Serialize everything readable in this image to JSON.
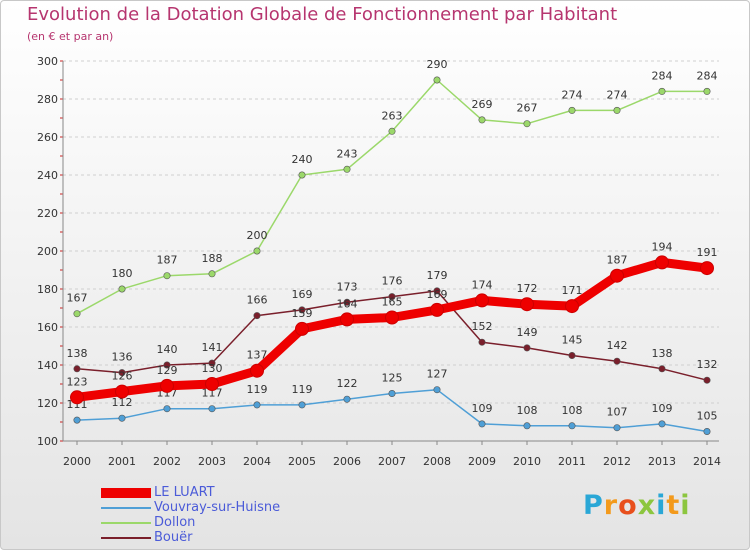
{
  "title": "Evolution de la Dotation Globale de Fonctionnement par Habitant",
  "subtitle": "(en € et par an)",
  "logo": [
    "P",
    "r",
    "o",
    "x",
    "i",
    "t",
    "i"
  ],
  "colors": {
    "title": "#b6356f",
    "legend_text": "#4b5bd8",
    "grid": "#cfcfcf"
  },
  "chart_data": {
    "type": "line",
    "title": "Evolution de la Dotation Globale de Fonctionnement par Habitant",
    "subtitle": "(en € et par an)",
    "xlabel": "",
    "ylabel": "",
    "x": [
      "2000",
      "2001",
      "2002",
      "2003",
      "2004",
      "2005",
      "2006",
      "2007",
      "2008",
      "2009",
      "2010",
      "2011",
      "2012",
      "2013",
      "2014"
    ],
    "ylim": [
      100,
      300
    ],
    "yticks": [
      100,
      120,
      140,
      160,
      180,
      200,
      220,
      240,
      260,
      280,
      300
    ],
    "grid": "horizontal dashed",
    "legend_position": "bottom-left",
    "series": [
      {
        "name": "Dollon",
        "color": "#9bd86a",
        "style": "thin",
        "values": [
          167,
          180,
          187,
          188,
          200,
          240,
          243,
          263,
          290,
          269,
          267,
          274,
          274,
          284,
          284
        ],
        "labels": [
          "167",
          "180",
          "187",
          "188",
          "200",
          "240",
          "243",
          "263",
          "290",
          "269",
          "267",
          "274",
          "274",
          "284",
          "284"
        ]
      },
      {
        "name": "Bouër",
        "color": "#7a1f2b",
        "style": "thin",
        "values": [
          138,
          136,
          140,
          141,
          166,
          169,
          173,
          176,
          179,
          152,
          149,
          145,
          142,
          138,
          132
        ],
        "labels": [
          "138",
          "136",
          "140",
          "141",
          "166",
          "169",
          "173",
          "176",
          "179",
          "152",
          "149",
          "145",
          "142",
          "138",
          "132"
        ]
      },
      {
        "name": "Vouvray-sur-Huisne",
        "color": "#4f9fd6",
        "style": "thin",
        "values": [
          111,
          112,
          117,
          117,
          119,
          119,
          122,
          125,
          127,
          109,
          108,
          108,
          107,
          109,
          105
        ],
        "labels": [
          "111",
          "112",
          "117",
          "117",
          "119",
          "119",
          "122",
          "125",
          "127",
          "109",
          "108",
          "108",
          "107",
          "109",
          "105"
        ]
      },
      {
        "name": "LE LUART",
        "color": "#ee0000",
        "style": "thick",
        "values": [
          123,
          126,
          129,
          130,
          137,
          159,
          164,
          165,
          169,
          174,
          172,
          171,
          187,
          194,
          191
        ],
        "labels": [
          "123",
          "126",
          "129",
          "130",
          "137",
          "159",
          "164",
          "165",
          "169",
          "174",
          "172",
          "171",
          "187",
          "194",
          "191"
        ]
      }
    ],
    "legend": [
      "LE LUART",
      "Vouvray-sur-Huisne",
      "Dollon",
      "Bouër"
    ]
  }
}
